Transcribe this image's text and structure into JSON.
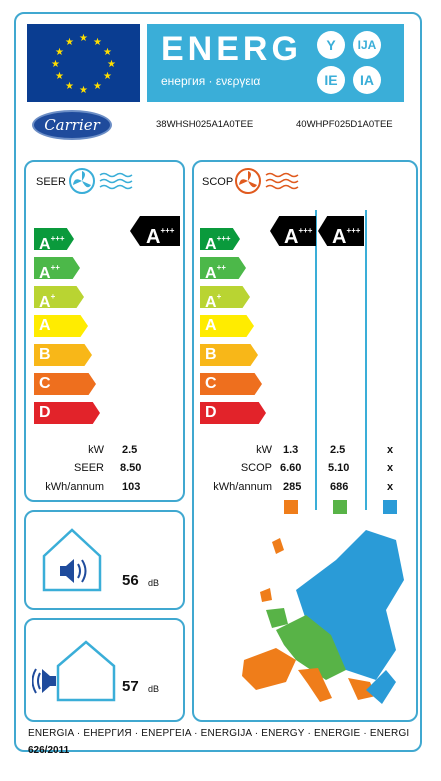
{
  "header": {
    "energy_word": "ENERG",
    "energy_subtitle": "енергия · ενεργεια",
    "lang_letters": [
      "Y",
      "IJA",
      "IE",
      "IA"
    ]
  },
  "brand": {
    "logo_text": "Carrier"
  },
  "models": {
    "indoor": "38WHSH025A1A0TEE",
    "outdoor": "40WHPF025D1A0TEE"
  },
  "scale": [
    {
      "letter": "A",
      "sup": "+++",
      "color": "#0a9a3c"
    },
    {
      "letter": "A",
      "sup": "++",
      "color": "#4cb849"
    },
    {
      "letter": "A",
      "sup": "+",
      "color": "#b9d432"
    },
    {
      "letter": "A",
      "sup": "",
      "color": "#ffec00"
    },
    {
      "letter": "B",
      "sup": "",
      "color": "#f8b718"
    },
    {
      "letter": "C",
      "sup": "",
      "color": "#ee6f1e"
    },
    {
      "letter": "D",
      "sup": "",
      "color": "#e2232a"
    }
  ],
  "seer": {
    "title": "SEER",
    "rating": {
      "letter": "A",
      "sup": "+++"
    },
    "rows": [
      {
        "label": "kW",
        "value": "2.5"
      },
      {
        "label": "SEER",
        "value": "8.50"
      },
      {
        "label": "kWh/annum",
        "value": "103"
      }
    ]
  },
  "scop": {
    "title": "SCOP",
    "ratings": [
      {
        "letter": "A",
        "sup": "+++"
      },
      {
        "letter": "A",
        "sup": "+++"
      }
    ],
    "row_labels": [
      "kW",
      "SCOP",
      "kWh/annum"
    ],
    "columns": [
      {
        "values": [
          "1.3",
          "6.60",
          "285"
        ],
        "zone_color": "#ef7d1a"
      },
      {
        "values": [
          "2.5",
          "5.10",
          "686"
        ],
        "zone_color": "#58b347"
      },
      {
        "values": [
          "x",
          "x",
          "x"
        ],
        "zone_color": "#2a9bd7"
      }
    ]
  },
  "noise": {
    "indoor": {
      "value": "56",
      "unit": "dB"
    },
    "outdoor": {
      "value": "57",
      "unit": "dB"
    }
  },
  "footer": {
    "names": "ENERGIA · ЕНЕРГИЯ · ΕΝΕΡΓΕΙΑ · ENERGIJA · ENERGY · ENERGIE · ENERGI",
    "regulation": "626/2011"
  }
}
